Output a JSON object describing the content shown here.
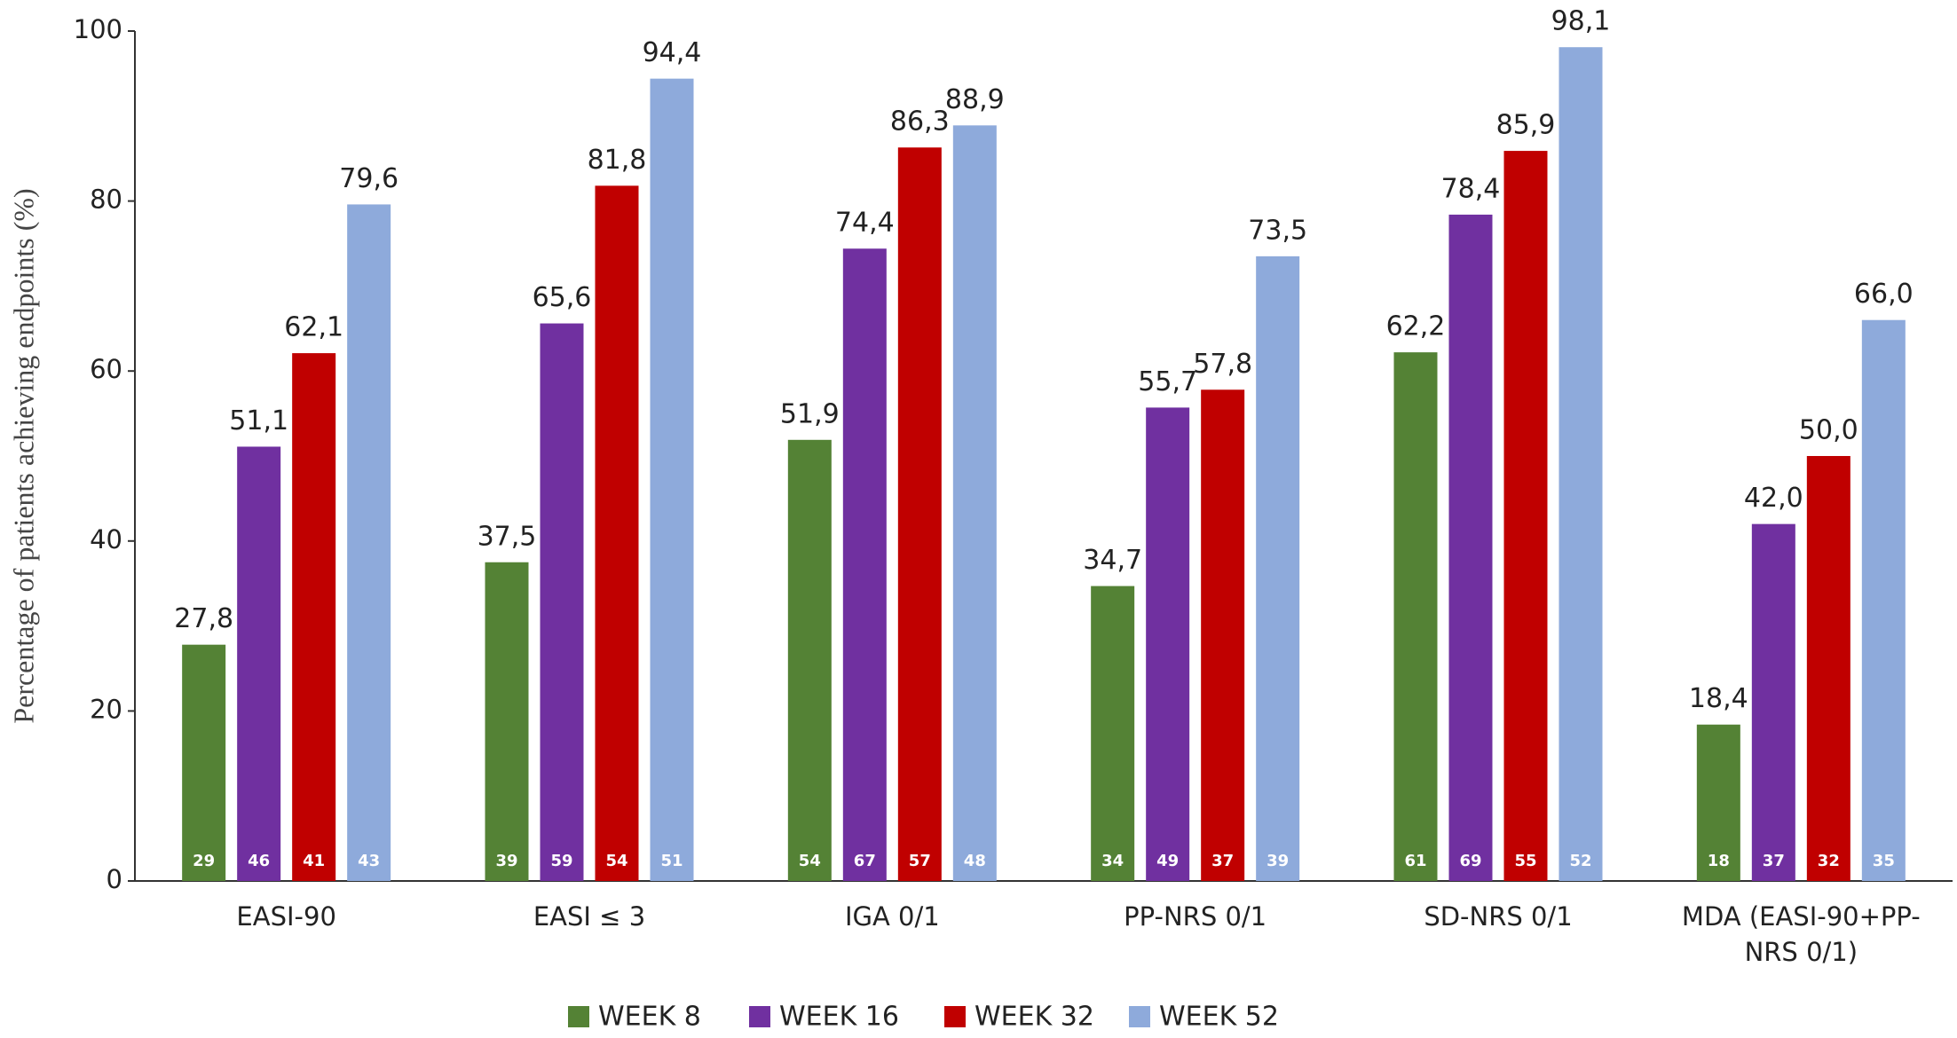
{
  "chart_data": {
    "type": "bar",
    "y_label": "Percentage of patients achieving endpoints (%)",
    "categories": [
      "EASI-90",
      "EASI ≤ 3",
      "IGA 0/1",
      "PP-NRS 0/1",
      "SD-NRS 0/1",
      "MDA (EASI-90+PP-NRS 0/1)"
    ],
    "series": [
      {
        "name": "WEEK 8",
        "color": "#548235",
        "values": [
          27.8,
          37.5,
          51.9,
          34.7,
          62.2,
          18.4
        ],
        "value_labels": [
          "27,8",
          "37,5",
          "51,9",
          "34,7",
          "62,2",
          "18,4"
        ],
        "counts": [
          29,
          39,
          54,
          34,
          61,
          18
        ]
      },
      {
        "name": "WEEK 16",
        "color": "#7030a0",
        "values": [
          51.1,
          65.6,
          74.4,
          55.7,
          78.4,
          42.0
        ],
        "value_labels": [
          "51,1",
          "65,6",
          "74,4",
          "55,7",
          "78,4",
          "42,0"
        ],
        "counts": [
          46,
          59,
          67,
          49,
          69,
          37
        ]
      },
      {
        "name": "WEEK 32",
        "color": "#c00000",
        "values": [
          62.1,
          81.8,
          86.3,
          57.8,
          85.9,
          50.0
        ],
        "value_labels": [
          "62,1",
          "81,8",
          "86,3",
          "57,8",
          "85,9",
          "50,0"
        ],
        "counts": [
          41,
          54,
          57,
          37,
          55,
          32
        ]
      },
      {
        "name": "WEEK 52",
        "color": "#8eaadb",
        "values": [
          79.6,
          94.4,
          88.9,
          73.5,
          98.1,
          66.0
        ],
        "value_labels": [
          "79,6",
          "94,4",
          "88,9",
          "73,5",
          "98,1",
          "66,0"
        ],
        "counts": [
          43,
          51,
          48,
          39,
          52,
          35
        ]
      }
    ],
    "ylim": [
      0,
      100
    ],
    "yticks": [
      0,
      20,
      40,
      60,
      80,
      100
    ],
    "grid": false,
    "legend": "bottom"
  }
}
